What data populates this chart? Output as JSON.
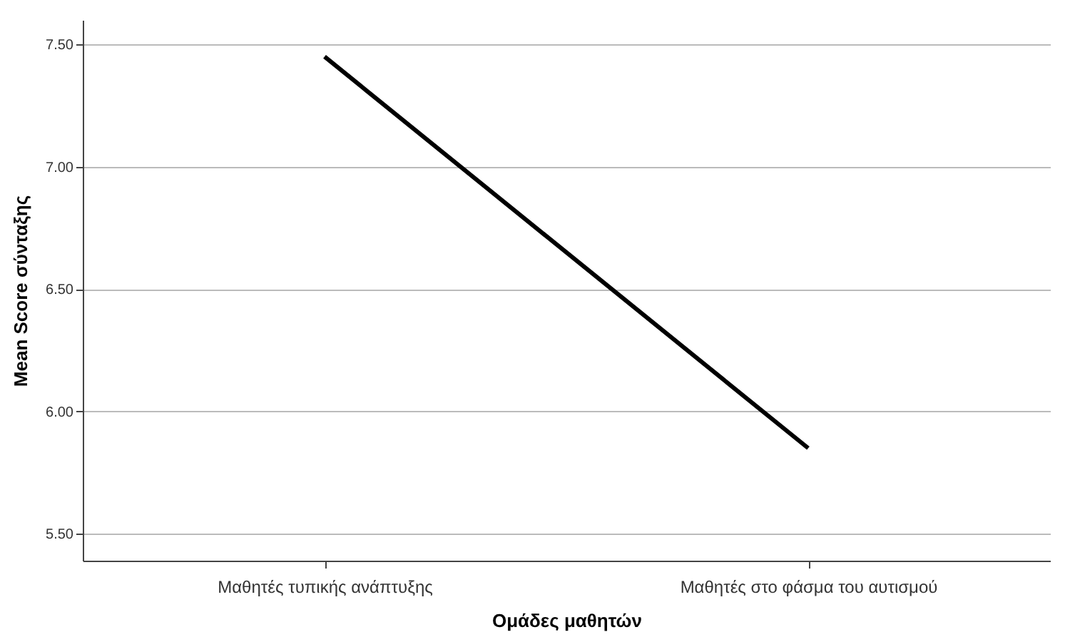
{
  "chart_data": {
    "type": "line",
    "xlabel": "Ομάδες μαθητών",
    "ylabel": "Mean Score σύνταξης",
    "categories": [
      "Μαθητές τυπικής ανάπτυξης",
      "Μαθητές στο φάσμα του αυτισμού"
    ],
    "series": [
      {
        "color": "#000000",
        "values": [
          7.45,
          5.85
        ]
      }
    ],
    "ylim": [
      5.39,
      7.6
    ],
    "yticks": [
      {
        "value": 5.5,
        "label": "5.50"
      },
      {
        "value": 6.0,
        "label": "6.00"
      },
      {
        "value": 6.5,
        "label": "6.50"
      },
      {
        "value": 7.0,
        "label": "7.00"
      },
      {
        "value": 7.5,
        "label": "7.50"
      }
    ],
    "grid": "y",
    "legend": false,
    "marker": "none",
    "line_style": "solid"
  }
}
